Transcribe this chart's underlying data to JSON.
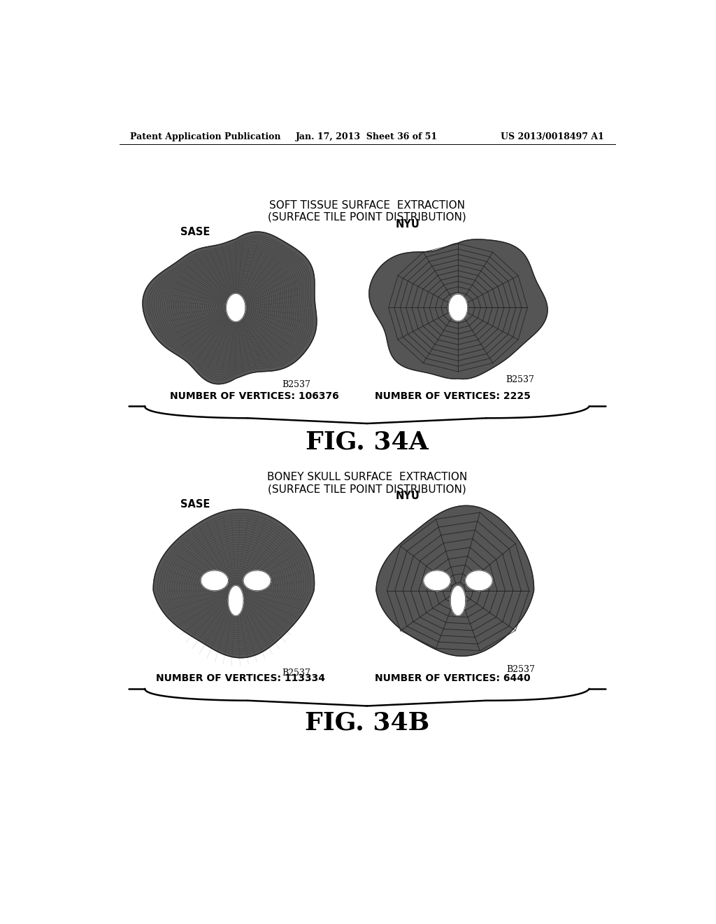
{
  "background_color": "#ffffff",
  "header_left": "Patent Application Publication",
  "header_center": "Jan. 17, 2013  Sheet 36 of 51",
  "header_right": "US 2013/0018497 A1",
  "fig_a": {
    "title_line1": "SOFT TISSUE SURFACE  EXTRACTION",
    "title_line2": "(SURFACE TILE POINT DISTRIBUTION)",
    "left_label": "SASE",
    "right_label": "NYU",
    "left_vertices": "NUMBER OF VERTICES: 106376",
    "right_vertices": "NUMBER OF VERTICES: 2225",
    "left_tag": "B2537",
    "right_tag": "B2537",
    "fig_label": "FIG. 34A"
  },
  "fig_b": {
    "title_line1": "BONEY SKULL SURFACE  EXTRACTION",
    "title_line2": "(SURFACE TILE POINT DISTRIBUTION)",
    "left_label": "SASE",
    "right_label": "NYU",
    "left_vertices": "NUMBER OF VERTICES: 113334",
    "right_vertices": "NUMBER OF VERTICES: 6440",
    "left_tag": "B2537",
    "right_tag": "B2537",
    "fig_label": "FIG. 34B"
  }
}
